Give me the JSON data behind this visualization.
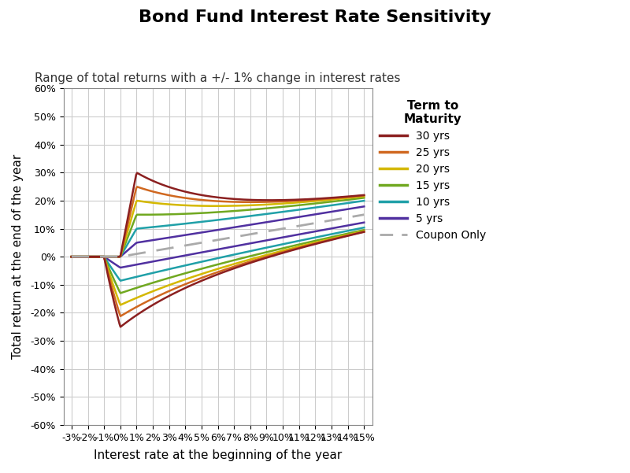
{
  "title": "Bond Fund Interest Rate Sensitivity",
  "subtitle": "Range of total returns with a +/- 1% change in interest rates",
  "xlabel": "Interest rate at the beginning of the year",
  "ylabel": "Total return at the end of the year",
  "x_ticks_labels": [
    "-3%",
    "-2%",
    "-1%",
    "0%",
    "1%",
    "2%",
    "3%",
    "4%",
    "5%",
    "6%",
    "7%",
    "8%",
    "9%",
    "10%",
    "11%",
    "12%",
    "13%",
    "14%",
    "15%"
  ],
  "x_ticks_values": [
    -0.03,
    -0.02,
    -0.01,
    0.0,
    0.01,
    0.02,
    0.03,
    0.04,
    0.05,
    0.06,
    0.07,
    0.08,
    0.09,
    0.1,
    0.11,
    0.12,
    0.13,
    0.14,
    0.15
  ],
  "ylim": [
    -0.6,
    0.6
  ],
  "y_ticks": [
    -0.6,
    -0.5,
    -0.4,
    -0.3,
    -0.2,
    -0.1,
    0.0,
    0.1,
    0.2,
    0.3,
    0.4,
    0.5,
    0.6
  ],
  "y_tick_labels": [
    "-60%",
    "-50%",
    "-40%",
    "-30%",
    "-20%",
    "-10%",
    "0%",
    "10%",
    "20%",
    "30%",
    "40%",
    "50%",
    "60%"
  ],
  "series": [
    {
      "label": "30 yrs",
      "color": "#8B2020",
      "term": 30
    },
    {
      "label": "25 yrs",
      "color": "#D06820",
      "term": 25
    },
    {
      "label": "20 yrs",
      "color": "#D4B800",
      "term": 20
    },
    {
      "label": "15 yrs",
      "color": "#70A820",
      "term": 15
    },
    {
      "label": "10 yrs",
      "color": "#20A0A8",
      "term": 10
    },
    {
      "label": "5 yrs",
      "color": "#5030A0",
      "term": 5
    }
  ],
  "coupon_only_color": "#aaaaaa",
  "background_color": "#ffffff",
  "grid_color": "#cccccc",
  "title_fontsize": 16,
  "subtitle_fontsize": 11,
  "axis_label_fontsize": 11,
  "tick_fontsize": 9,
  "legend_title_fontsize": 11,
  "legend_fontsize": 10,
  "linewidth": 1.8
}
